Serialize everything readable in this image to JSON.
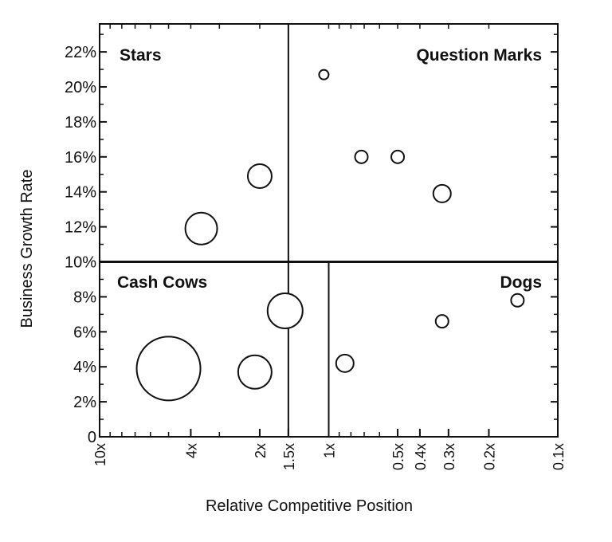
{
  "chart_data": {
    "type": "scatter",
    "subtype": "bubble",
    "title": "",
    "xlabel": "Relative Competitive Position",
    "ylabel": "Business Growth Rate",
    "x_scale": "log",
    "x_reversed": true,
    "x_tick_values": [
      10,
      4,
      2,
      1.5,
      1,
      0.5,
      0.4,
      0.3,
      0.2,
      0.1
    ],
    "x_tick_labels": [
      "10x",
      "4x",
      "2x",
      "1.5x",
      "1x",
      "0.5x",
      "0.4x",
      "0.3x",
      "0.2x",
      "0.1x"
    ],
    "xlim": [
      10,
      0.1
    ],
    "y_tick_values": [
      0,
      2,
      4,
      6,
      8,
      10,
      12,
      14,
      16,
      18,
      20,
      22
    ],
    "y_tick_labels": [
      "0",
      "2%",
      "4%",
      "6%",
      "8%",
      "10%",
      "12%",
      "14%",
      "16%",
      "18%",
      "20%",
      "22%"
    ],
    "ylim": [
      0,
      23.6
    ],
    "grid": false,
    "dividers": {
      "growth_line": 10,
      "upper_split_x": 1.5,
      "lower_split_x": 1
    },
    "quadrant_labels": {
      "stars": "Stars",
      "question_marks": "Question Marks",
      "cash_cows": "Cash Cows",
      "dogs": "Dogs"
    },
    "points": [
      {
        "x": 3.6,
        "y": 11.9,
        "size": 1.0
      },
      {
        "x": 2.0,
        "y": 14.9,
        "size": 0.75
      },
      {
        "x": 1.05,
        "y": 20.7,
        "size": 0.3
      },
      {
        "x": 0.72,
        "y": 16.0,
        "size": 0.4
      },
      {
        "x": 0.5,
        "y": 16.0,
        "size": 0.4
      },
      {
        "x": 0.32,
        "y": 13.9,
        "size": 0.55
      },
      {
        "x": 5.0,
        "y": 3.9,
        "size": 2.0
      },
      {
        "x": 2.1,
        "y": 3.7,
        "size": 1.05
      },
      {
        "x": 1.55,
        "y": 7.2,
        "size": 1.1
      },
      {
        "x": 0.85,
        "y": 4.2,
        "size": 0.55
      },
      {
        "x": 0.32,
        "y": 6.6,
        "size": 0.4
      },
      {
        "x": 0.15,
        "y": 7.8,
        "size": 0.4
      }
    ]
  }
}
